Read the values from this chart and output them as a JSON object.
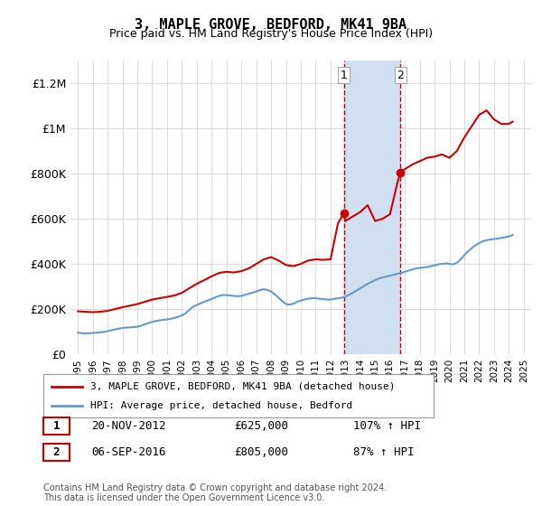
{
  "title": "3, MAPLE GROVE, BEDFORD, MK41 9BA",
  "subtitle": "Price paid vs. HM Land Registry's House Price Index (HPI)",
  "ylabel_ticks": [
    "£0",
    "£200K",
    "£400K",
    "£600K",
    "£800K",
    "£1M",
    "£1.2M"
  ],
  "ytick_vals": [
    0,
    200000,
    400000,
    600000,
    800000,
    1000000,
    1200000
  ],
  "ylim": [
    0,
    1300000
  ],
  "xlim_start": 1994.5,
  "xlim_end": 2025.5,
  "property_color": "#cc0000",
  "hpi_color": "#6699cc",
  "sale1_x": 2012.9,
  "sale1_y": 625000,
  "sale2_x": 2016.7,
  "sale2_y": 805000,
  "shade_color": "#d0e0f0",
  "legend_label1": "3, MAPLE GROVE, BEDFORD, MK41 9BA (detached house)",
  "legend_label2": "HPI: Average price, detached house, Bedford",
  "annotation1_num": "1",
  "annotation1_date": "20-NOV-2012",
  "annotation1_price": "£625,000",
  "annotation1_hpi": "107% ↑ HPI",
  "annotation2_num": "2",
  "annotation2_date": "06-SEP-2016",
  "annotation2_price": "£805,000",
  "annotation2_hpi": "87% ↑ HPI",
  "footnote": "Contains HM Land Registry data © Crown copyright and database right 2024.\nThis data is licensed under the Open Government Licence v3.0.",
  "hpi_data_x": [
    1995,
    1995.25,
    1995.5,
    1995.75,
    1996,
    1996.25,
    1996.5,
    1996.75,
    1997,
    1997.25,
    1997.5,
    1997.75,
    1998,
    1998.25,
    1998.5,
    1998.75,
    1999,
    1999.25,
    1999.5,
    1999.75,
    2000,
    2000.25,
    2000.5,
    2000.75,
    2001,
    2001.25,
    2001.5,
    2001.75,
    2002,
    2002.25,
    2002.5,
    2002.75,
    2003,
    2003.25,
    2003.5,
    2003.75,
    2004,
    2004.25,
    2004.5,
    2004.75,
    2005,
    2005.25,
    2005.5,
    2005.75,
    2006,
    2006.25,
    2006.5,
    2006.75,
    2007,
    2007.25,
    2007.5,
    2007.75,
    2008,
    2008.25,
    2008.5,
    2008.75,
    2009,
    2009.25,
    2009.5,
    2009.75,
    2010,
    2010.25,
    2010.5,
    2010.75,
    2011,
    2011.25,
    2011.5,
    2011.75,
    2012,
    2012.25,
    2012.5,
    2012.75,
    2013,
    2013.25,
    2013.5,
    2013.75,
    2014,
    2014.25,
    2014.5,
    2014.75,
    2015,
    2015.25,
    2015.5,
    2015.75,
    2016,
    2016.25,
    2016.5,
    2016.75,
    2017,
    2017.25,
    2017.5,
    2017.75,
    2018,
    2018.25,
    2018.5,
    2018.75,
    2019,
    2019.25,
    2019.5,
    2019.75,
    2020,
    2020.25,
    2020.5,
    2020.75,
    2021,
    2021.25,
    2021.5,
    2021.75,
    2022,
    2022.25,
    2022.5,
    2022.75,
    2023,
    2023.25,
    2023.5,
    2023.75,
    2024,
    2024.25
  ],
  "hpi_data_y": [
    95000,
    93000,
    92000,
    93000,
    94000,
    95000,
    97000,
    99000,
    102000,
    106000,
    110000,
    113000,
    116000,
    118000,
    119000,
    120000,
    122000,
    126000,
    132000,
    138000,
    143000,
    147000,
    150000,
    152000,
    154000,
    157000,
    161000,
    165000,
    172000,
    182000,
    196000,
    210000,
    218000,
    225000,
    232000,
    238000,
    245000,
    252000,
    258000,
    262000,
    262000,
    260000,
    258000,
    257000,
    258000,
    263000,
    268000,
    272000,
    278000,
    284000,
    288000,
    285000,
    278000,
    265000,
    250000,
    235000,
    222000,
    220000,
    224000,
    232000,
    238000,
    242000,
    246000,
    248000,
    248000,
    246000,
    244000,
    242000,
    242000,
    245000,
    248000,
    250000,
    255000,
    263000,
    272000,
    282000,
    292000,
    302000,
    312000,
    320000,
    328000,
    335000,
    340000,
    344000,
    348000,
    352000,
    356000,
    360000,
    365000,
    370000,
    375000,
    380000,
    382000,
    384000,
    386000,
    390000,
    394000,
    398000,
    400000,
    402000,
    400000,
    398000,
    405000,
    420000,
    438000,
    455000,
    470000,
    482000,
    492000,
    500000,
    505000,
    508000,
    510000,
    512000,
    515000,
    518000,
    522000,
    528000
  ],
  "prop_data_x": [
    1995,
    1995.5,
    1996,
    1996.5,
    1997,
    1997.5,
    1998,
    1998.5,
    1999,
    1999.5,
    2000,
    2000.5,
    2001,
    2001.5,
    2002,
    2002.5,
    2003,
    2003.5,
    2004,
    2004.5,
    2005,
    2005.5,
    2006,
    2006.5,
    2007,
    2007.5,
    2008,
    2008.5,
    2009,
    2009.5,
    2010,
    2010.5,
    2011,
    2011.5,
    2012,
    2012.5,
    2012.9,
    2013,
    2013.5,
    2014,
    2014.5,
    2015,
    2015.5,
    2016,
    2016.5,
    2016.7,
    2017,
    2017.5,
    2018,
    2018.5,
    2019,
    2019.5,
    2020,
    2020.5,
    2021,
    2021.5,
    2022,
    2022.5,
    2023,
    2023.5,
    2024,
    2024.25
  ],
  "prop_data_y": [
    190000,
    188000,
    186000,
    188000,
    192000,
    200000,
    208000,
    215000,
    222000,
    232000,
    242000,
    248000,
    254000,
    260000,
    272000,
    292000,
    312000,
    328000,
    345000,
    360000,
    365000,
    362000,
    368000,
    380000,
    400000,
    420000,
    430000,
    415000,
    395000,
    390000,
    400000,
    415000,
    420000,
    418000,
    420000,
    580000,
    625000,
    590000,
    610000,
    630000,
    660000,
    590000,
    600000,
    620000,
    760000,
    805000,
    820000,
    840000,
    855000,
    870000,
    875000,
    885000,
    870000,
    900000,
    960000,
    1010000,
    1060000,
    1080000,
    1040000,
    1020000,
    1020000,
    1030000
  ]
}
